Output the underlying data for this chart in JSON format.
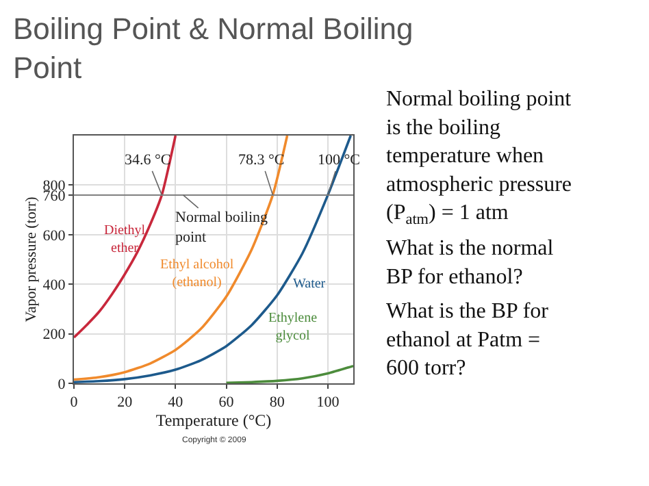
{
  "chart_data": {
    "type": "line",
    "title": "Boiling Point & Normal Boiling Point",
    "xlabel": "Temperature (°C)",
    "ylabel": "Vapor pressure (torr)",
    "series": [
      {
        "name": "Diethyl ether",
        "color": "#c8283c",
        "x": [
          0,
          5,
          10,
          15,
          20,
          25,
          30,
          34.6,
          40
        ],
        "values": [
          185,
          235,
          290,
          360,
          440,
          530,
          640,
          760,
          1000
        ]
      },
      {
        "name": "Ethyl alcohol (ethanol)",
        "color": "#f08a2c",
        "x": [
          0,
          10,
          20,
          30,
          40,
          50,
          60,
          70,
          78.3,
          84
        ],
        "values": [
          15,
          25,
          45,
          80,
          135,
          220,
          350,
          540,
          760,
          1000
        ]
      },
      {
        "name": "Water",
        "color": "#1d5a8c",
        "x": [
          0,
          10,
          20,
          30,
          40,
          50,
          60,
          70,
          80,
          90,
          100,
          109
        ],
        "values": [
          5,
          9,
          17,
          32,
          55,
          93,
          150,
          235,
          355,
          525,
          760,
          1000
        ]
      },
      {
        "name": "Ethylene glycol",
        "color": "#4c8c3c",
        "x": [
          60,
          70,
          80,
          90,
          100,
          110
        ],
        "values": [
          2,
          5,
          10,
          20,
          40,
          70
        ]
      }
    ],
    "xlim": [
      0,
      110
    ],
    "xticks": [
      0,
      20,
      40,
      60,
      80,
      100
    ],
    "ylim": [
      0,
      1000
    ],
    "yticks": [
      0,
      200,
      400,
      600,
      760,
      800
    ],
    "grid": true,
    "legend": false,
    "marker": "none",
    "line_style": "solid",
    "ref_lines": [
      {
        "axis": "y",
        "value": 760,
        "color": "#808080"
      }
    ],
    "annotations": [
      {
        "text": "34.6 °C",
        "x": 34.6,
        "y": 760
      },
      {
        "text": "78.3 °C",
        "x": 78.3,
        "y": 760
      },
      {
        "text": "100 °C",
        "x": 100,
        "y": 760
      },
      {
        "text": "Normal boiling point",
        "x": 43,
        "y": 760
      },
      "Copyright © 2009",
      "Normal boiling point is the boiling temperature when atmospheric pressure (P$_{atm}$) = 1 atm",
      "What is the normal BP for ethanol?",
      "What is the BP for ethanol at Patm = 600 torr?"
    ]
  }
}
